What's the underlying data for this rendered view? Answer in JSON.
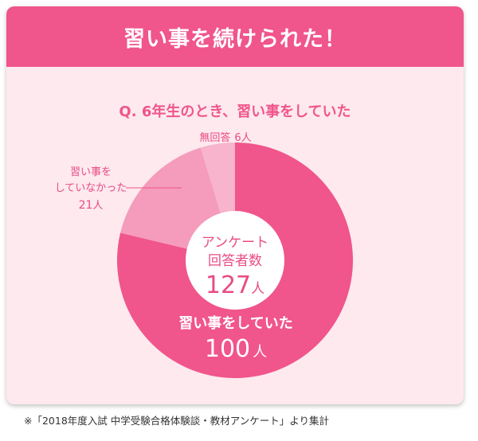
{
  "header": {
    "title": "習い事を続けられた！"
  },
  "question": "Q. 6年生のとき、習い事をしていた",
  "center": {
    "label_line1": "アンケート",
    "label_line2": "回答者数",
    "total": "127",
    "unit": "人"
  },
  "chart_data": {
    "type": "pie",
    "title": "Q. 6年生のとき、習い事をしていた",
    "total": 127,
    "unit": "人",
    "slices": [
      {
        "label": "習い事をしていた",
        "value": 100,
        "color": "#f0558c"
      },
      {
        "label": "習い事をしていなかった",
        "value": 21,
        "color": "#f59bbb"
      },
      {
        "label": "無回答",
        "value": 6,
        "color": "#f7b4cc"
      }
    ]
  },
  "labels": {
    "no_answer": "無回答",
    "no_answer_count": "6",
    "not_doing_line1": "習い事を",
    "not_doing_line2": "していなかった",
    "not_doing_count": "21",
    "doing": "習い事をしていた",
    "doing_count": "100",
    "unit": "人"
  },
  "footnote": "※「2018年度入試 中学受験合格体験談・教材アンケート」より集計"
}
